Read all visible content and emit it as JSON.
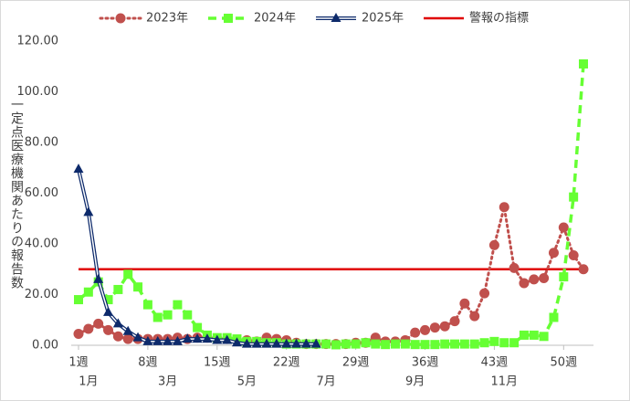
{
  "chart_data": {
    "type": "line",
    "y_label": "一定点医療機関あたりの報告数",
    "categories": [
      "1週",
      null,
      null,
      null,
      null,
      null,
      null,
      "8週",
      null,
      null,
      null,
      null,
      null,
      null,
      "15週",
      null,
      null,
      null,
      null,
      null,
      null,
      "22週",
      null,
      null,
      null,
      null,
      null,
      null,
      "29週",
      null,
      null,
      null,
      null,
      null,
      null,
      "36週",
      null,
      null,
      null,
      null,
      null,
      null,
      "43週",
      null,
      null,
      null,
      null,
      null,
      null,
      "50週",
      null,
      null
    ],
    "month_labels": [
      null,
      "1月",
      null,
      null,
      null,
      null,
      null,
      null,
      null,
      "3月",
      null,
      null,
      null,
      null,
      null,
      null,
      null,
      "5月",
      null,
      null,
      null,
      null,
      null,
      null,
      null,
      "7月",
      null,
      null,
      null,
      null,
      null,
      null,
      null,
      null,
      "9月",
      null,
      null,
      null,
      null,
      null,
      null,
      null,
      null,
      "11月",
      null,
      null,
      null,
      null,
      null,
      null,
      null,
      null
    ],
    "series": [
      {
        "name": "2023年",
        "color": "#c0504d",
        "line_style": "dotted",
        "marker": "circle",
        "values": [
          4.5,
          6.5,
          8.5,
          6,
          3.5,
          2.5,
          2.5,
          2.5,
          2.5,
          2.5,
          3,
          2.5,
          3,
          3,
          2.5,
          2.5,
          2,
          2,
          1.5,
          3,
          2.5,
          2,
          1,
          0.5,
          0.5,
          0.5,
          0.5,
          0.5,
          1,
          1,
          3,
          1.5,
          1.5,
          2,
          5,
          6,
          7,
          7.5,
          9.5,
          16.5,
          11.5,
          20.5,
          39.5,
          54.5,
          30.5,
          24.5,
          26,
          26.5,
          36.5,
          46.5,
          35.5,
          30
        ]
      },
      {
        "name": "2024年",
        "color": "#66ff33",
        "line_style": "dashed",
        "marker": "square",
        "values": [
          18,
          21,
          25,
          18,
          22,
          28,
          23,
          16,
          11,
          12,
          16,
          12,
          7,
          4,
          3,
          3,
          2.5,
          1.5,
          1.5,
          1,
          1,
          0.5,
          0.5,
          0.5,
          0.5,
          0.5,
          0.2,
          0.5,
          0.5,
          1,
          0.5,
          0.3,
          0.5,
          0.5,
          0.3,
          0.3,
          0.3,
          0.5,
          0.5,
          0.5,
          0.5,
          1,
          1.5,
          1,
          1,
          4,
          4,
          3.5,
          11,
          27,
          58.5,
          111
        ]
      },
      {
        "name": "2025年",
        "color": "#0d2a6b",
        "line_style": "double",
        "marker": "triangle",
        "values": [
          69.5,
          52.5,
          26,
          13,
          8.5,
          5.5,
          3,
          1.5,
          1.5,
          1.5,
          1.5,
          2.5,
          2.5,
          2.5,
          2,
          2,
          1,
          0.5,
          0.5,
          0.5,
          0.5,
          0.5,
          0.5,
          0.5,
          0.5,
          null,
          null,
          null,
          null,
          null,
          null,
          null,
          null,
          null,
          null,
          null,
          null,
          null,
          null,
          null,
          null,
          null,
          null,
          null,
          null,
          null,
          null,
          null,
          null,
          null,
          null,
          null
        ]
      }
    ],
    "reference_line": {
      "name": "警報の指標",
      "value": 30,
      "color": "#e00000"
    },
    "ylim": [
      0,
      120
    ],
    "yticks": [
      {
        "value": 0,
        "label": "0.00"
      },
      {
        "value": 20,
        "label": "20.00"
      },
      {
        "value": 40,
        "label": "40.00"
      },
      {
        "value": 60,
        "label": "60.00"
      },
      {
        "value": 80,
        "label": "80.00"
      },
      {
        "value": 100,
        "label": "100.00"
      },
      {
        "value": 120,
        "label": "120.00"
      }
    ],
    "grid": false,
    "legend": "top"
  }
}
